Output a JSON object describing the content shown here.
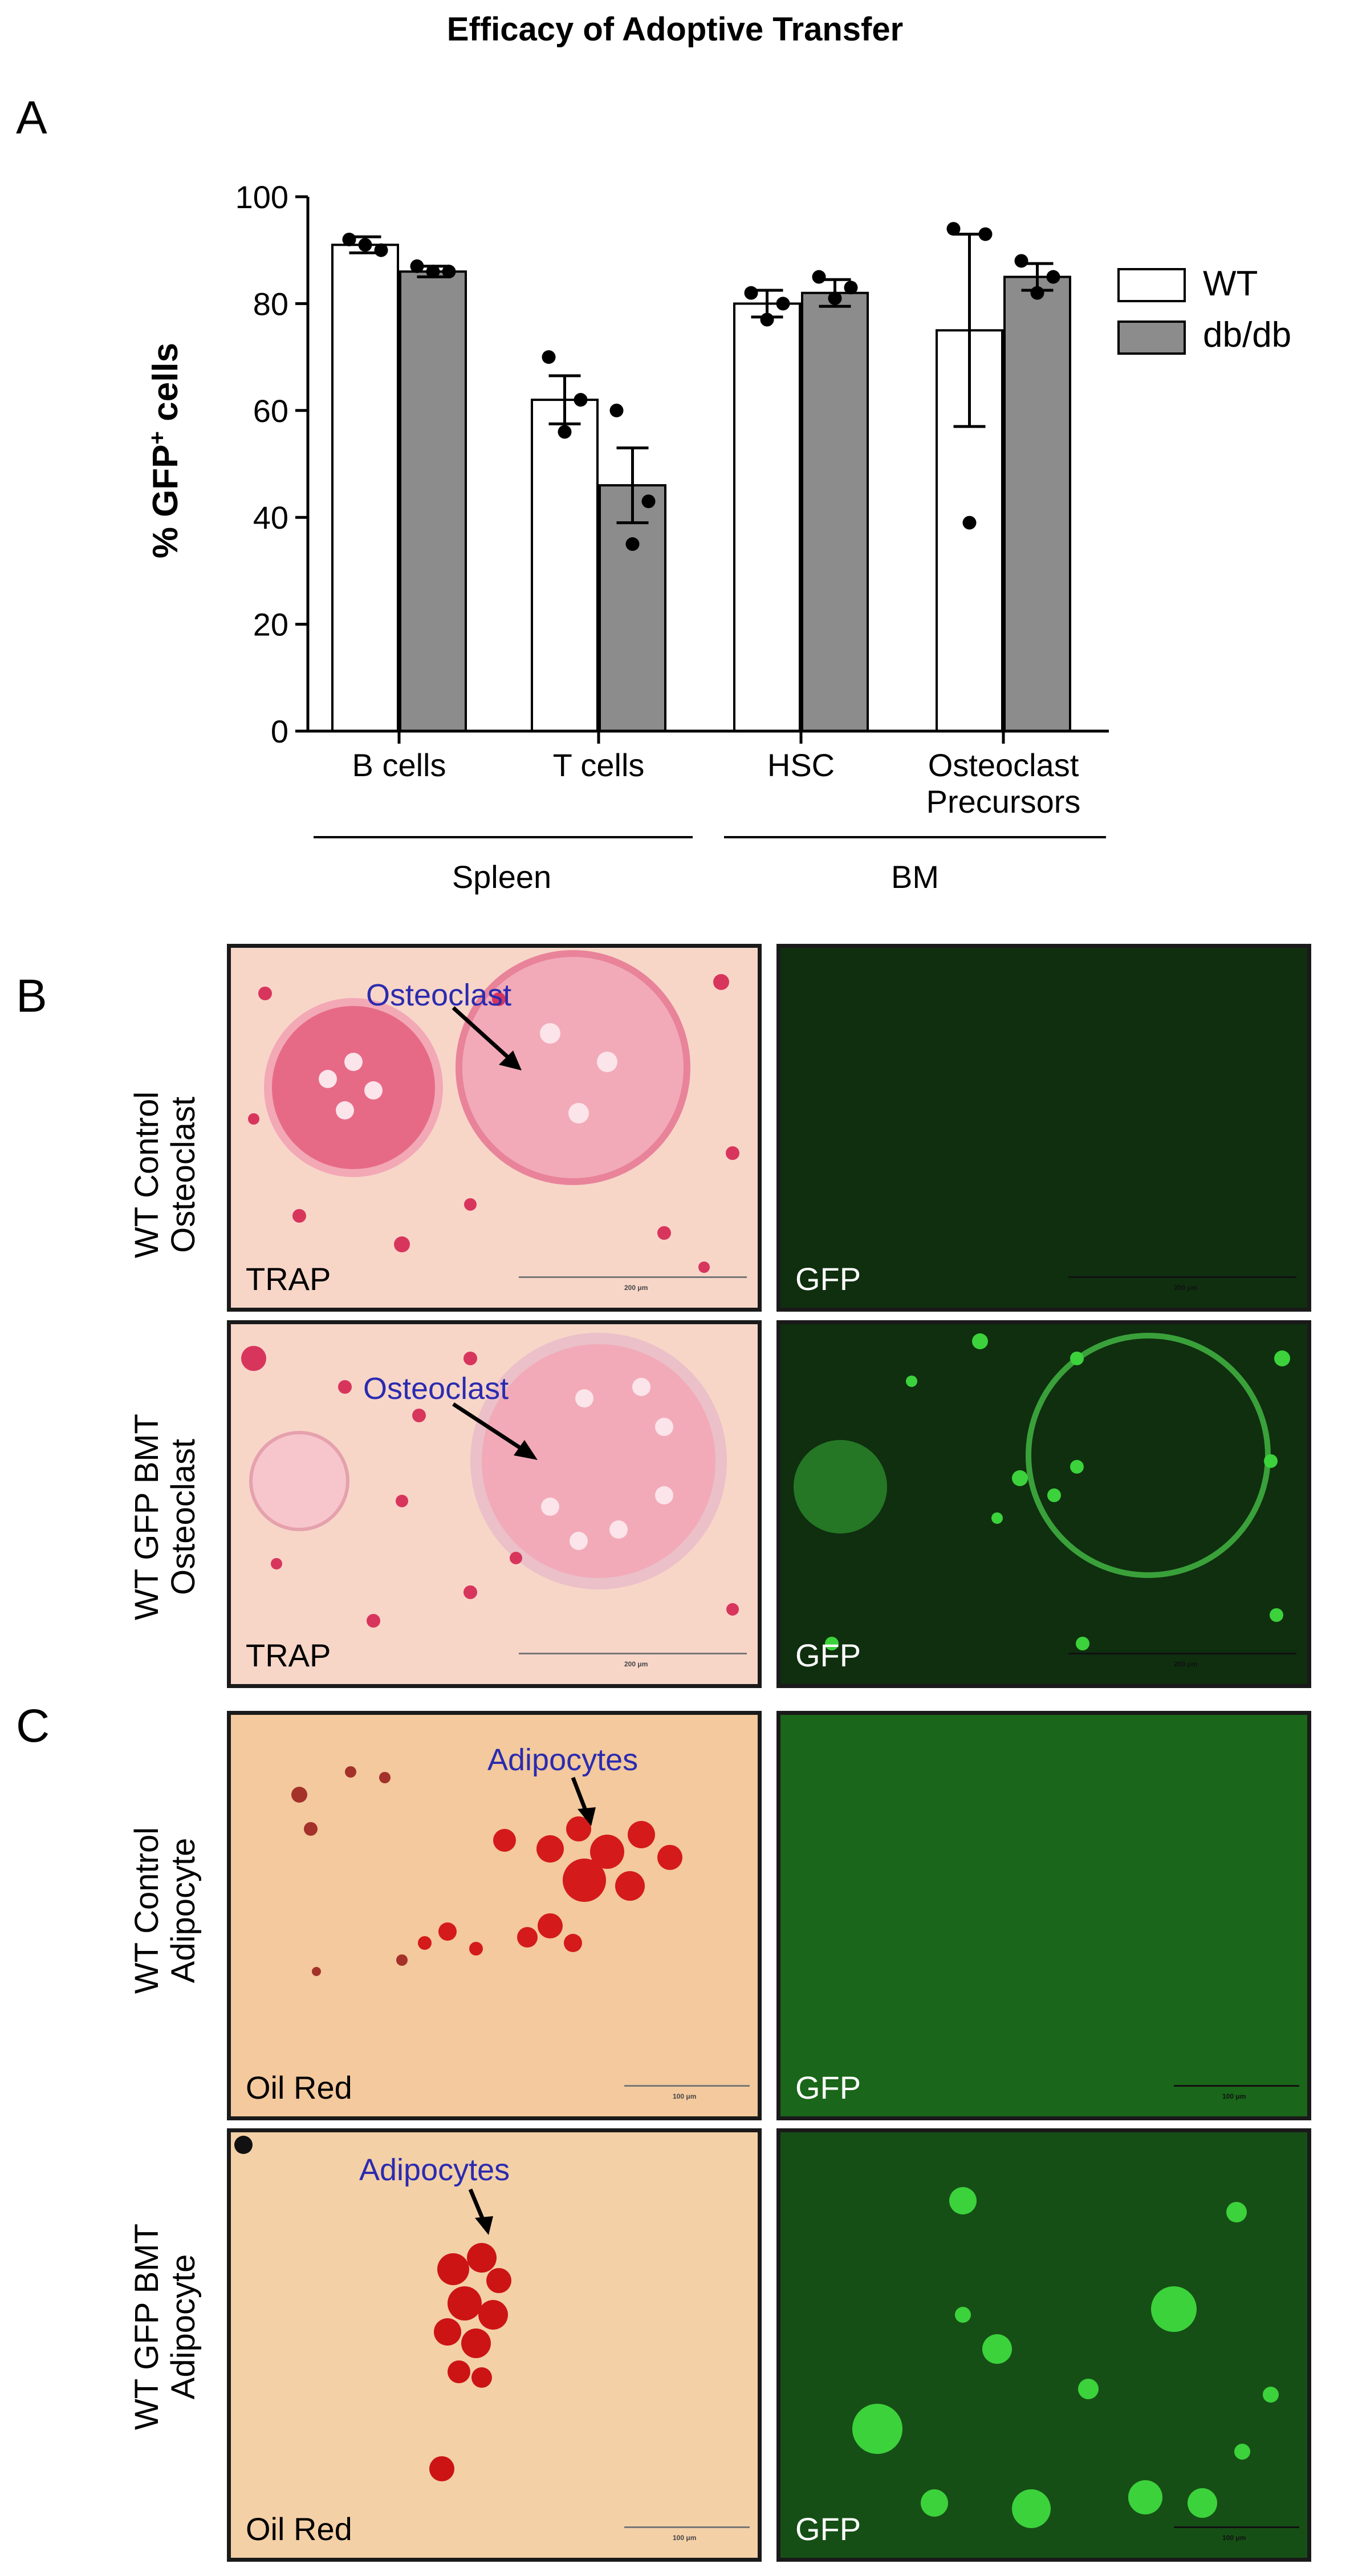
{
  "title": "Efficacy  of Adoptive  Transfer",
  "panels": {
    "a": "A",
    "b": "B",
    "c": "C"
  },
  "chart_data": {
    "type": "bar",
    "ylabel_prefix": "% GFP",
    "ylabel_sup": "+",
    "ylabel_suffix": " cells",
    "ylim": [
      0,
      100
    ],
    "yticks": [
      "0",
      "20",
      "40",
      "60",
      "80",
      "100"
    ],
    "categories": [
      "B cells",
      "T cells",
      "HSC",
      "Osteoclast\nPrecursors"
    ],
    "groups": [
      "Spleen",
      "BM"
    ],
    "legend": "right",
    "series": [
      {
        "name": "WT",
        "color": "#ffffff",
        "values": [
          91,
          62,
          80,
          75
        ],
        "errors": [
          1.5,
          4.5,
          2.5,
          18
        ],
        "points": [
          [
            92,
            90,
            91
          ],
          [
            70,
            62,
            56
          ],
          [
            82,
            80,
            77
          ],
          [
            94,
            93,
            39
          ]
        ]
      },
      {
        "name": "db/db",
        "color": "#8c8c8c",
        "values": [
          86,
          46,
          82,
          85
        ],
        "errors": [
          1,
          7,
          2.5,
          2.5
        ],
        "points": [
          [
            87,
            86,
            86
          ],
          [
            60,
            43,
            35
          ],
          [
            85,
            83,
            81
          ],
          [
            88,
            85,
            82
          ]
        ]
      }
    ]
  },
  "rows": [
    {
      "label_line1": "WT Control",
      "label_line2": "Osteoclast",
      "left_stain": "TRAP",
      "right_stain": "GFP",
      "annotation": "Osteoclast",
      "scale": "200 μm"
    },
    {
      "label_line1": "WT GFP  BMT",
      "label_line2": "Osteoclast",
      "left_stain": "TRAP",
      "right_stain": "GFP",
      "annotation": "Osteoclast",
      "scale": "200 μm"
    },
    {
      "label_line1": "WT Control",
      "label_line2": "Adipocyte",
      "left_stain": "Oil Red",
      "right_stain": "GFP",
      "annotation": "Adipocytes",
      "scale": "100 μm"
    },
    {
      "label_line1": "WT GFP  BMT",
      "label_line2": "Adipocyte",
      "left_stain": "Oil Red",
      "right_stain": "GFP",
      "annotation": "Adipocytes",
      "scale": "100 μm"
    }
  ],
  "colors": {
    "trap_bg": "#f7d6c8",
    "trap_cell": "#d8355d",
    "oil_bg": "#f3c99d",
    "oil_drop": "#d41a1a",
    "gfp_dark": "#0c2c0c",
    "gfp_bright": "#3cd23c",
    "annot_text": "#2b2bb0"
  }
}
